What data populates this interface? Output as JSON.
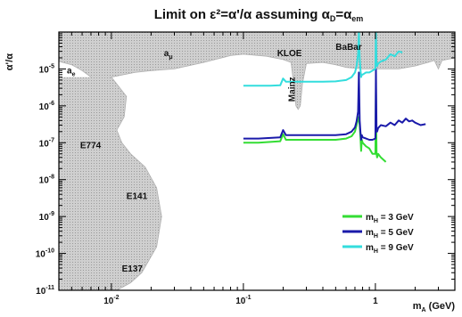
{
  "chart_data": {
    "type": "line",
    "title": "Limit on ε²=α'/α assuming α_D=α_em",
    "title_parts": {
      "main": "Limit on ε²=α'/α assuming α",
      "sub1": "D",
      "mid": "=α",
      "sub2": "em"
    },
    "xlabel": "m_A (GeV)",
    "xlabel_parts": {
      "main": "m",
      "sub": "A",
      "rest": " (GeV)"
    },
    "ylabel": "α'/α",
    "x_scale": "log",
    "y_scale": "log",
    "xlim": [
      0.004,
      4.0
    ],
    "ylim": [
      1e-11,
      0.0001
    ],
    "x_ticks": [
      {
        "value": 0.01,
        "base": "10",
        "exp": "-2"
      },
      {
        "value": 0.1,
        "base": "10",
        "exp": "-1"
      },
      {
        "value": 1,
        "base": "1",
        "exp": ""
      }
    ],
    "y_ticks": [
      {
        "value": 1e-05,
        "base": "10",
        "exp": "-5"
      },
      {
        "value": 1e-06,
        "base": "10",
        "exp": "-6"
      },
      {
        "value": 1e-07,
        "base": "10",
        "exp": "-7"
      },
      {
        "value": 1e-08,
        "base": "10",
        "exp": "-8"
      },
      {
        "value": 1e-09,
        "base": "10",
        "exp": "-9"
      },
      {
        "value": 1e-10,
        "base": "10",
        "exp": "-10"
      },
      {
        "value": 1e-11,
        "base": "10",
        "exp": "-11"
      }
    ],
    "excluded_regions": {
      "fill": "#c4c4c4",
      "color": "#b0b0b0",
      "top_boundary": [
        [
          0.004,
          1.6e-05
        ],
        [
          0.005,
          1.3e-05
        ],
        [
          0.006,
          9e-06
        ],
        [
          0.007,
          6e-06
        ],
        [
          0.0075,
          5e-06
        ],
        [
          0.008,
          5e-06
        ],
        [
          0.01,
          6e-06
        ],
        [
          0.015,
          8e-06
        ],
        [
          0.02,
          9e-06
        ],
        [
          0.03,
          1e-05
        ],
        [
          0.05,
          1.5e-05
        ],
        [
          0.08,
          2.3e-05
        ],
        [
          0.1,
          2.5e-05
        ],
        [
          0.15,
          2.2e-05
        ],
        [
          0.2,
          1.8e-05
        ],
        [
          0.23,
          1.5e-05
        ],
        [
          0.24,
          4e-06
        ],
        [
          0.25,
          1e-06
        ],
        [
          0.26,
          8e-07
        ],
        [
          0.27,
          1e-06
        ],
        [
          0.28,
          4e-06
        ],
        [
          0.3,
          1.4e-05
        ],
        [
          0.4,
          1.5e-05
        ],
        [
          0.5,
          1.3e-05
        ],
        [
          0.6,
          1.1e-05
        ],
        [
          0.8,
          1e-05
        ],
        [
          1.0,
          1e-05
        ],
        [
          1.5,
          1e-05
        ],
        [
          2.0,
          1.2e-05
        ],
        [
          2.5,
          1.5e-05
        ],
        [
          2.8,
          1.7e-05
        ],
        [
          3.0,
          1e-05
        ],
        [
          3.2,
          1.7e-05
        ],
        [
          4.0,
          2e-05
        ]
      ],
      "left_boundary": [
        [
          0.01,
          6e-06
        ],
        [
          0.013,
          1.8e-06
        ],
        [
          0.0125,
          5e-07
        ],
        [
          0.011,
          2.2e-07
        ],
        [
          0.012,
          1e-07
        ],
        [
          0.014,
          5e-08
        ],
        [
          0.018,
          2.2e-08
        ],
        [
          0.022,
          6e-09
        ],
        [
          0.024,
          1e-09
        ],
        [
          0.022,
          1.5e-10
        ],
        [
          0.017,
          3e-11
        ],
        [
          0.014,
          1.6e-11
        ],
        [
          0.011,
          1e-11
        ]
      ]
    },
    "series": [
      {
        "name": "m_H = 3 GeV",
        "label_main": "m",
        "label_sub": "H",
        "label_rest": " = 3 GeV",
        "color": "#33dd33",
        "x": [
          0.1,
          0.13,
          0.16,
          0.19,
          0.2,
          0.21,
          0.24,
          0.3,
          0.4,
          0.5,
          0.6,
          0.66,
          0.7,
          0.72,
          0.74,
          0.75,
          0.76,
          0.77,
          0.78,
          0.79,
          0.8,
          0.85,
          0.9,
          0.95,
          1.0,
          1.01,
          1.02,
          1.03,
          1.05,
          1.1,
          1.2
        ],
        "y": [
          1e-07,
          1e-07,
          1.05e-07,
          1.1e-07,
          1.7e-07,
          1.2e-07,
          1.2e-07,
          1.2e-07,
          1.2e-07,
          1.2e-07,
          1.3e-07,
          1.5e-07,
          2e-07,
          3e-07,
          5e-07,
          4e-07,
          3e-07,
          1.5e-07,
          6e-08,
          1.2e-07,
          1e-07,
          8e-08,
          7e-08,
          5e-08,
          5e-08,
          2.5e-06,
          5e-08,
          4e-08,
          5e-08,
          4e-08,
          3e-08
        ]
      },
      {
        "name": "m_H = 5 GeV",
        "label_main": "m",
        "label_sub": "H",
        "label_rest": " = 5 GeV",
        "color": "#1a1aaa",
        "x": [
          0.1,
          0.13,
          0.16,
          0.19,
          0.2,
          0.21,
          0.24,
          0.3,
          0.4,
          0.5,
          0.6,
          0.66,
          0.7,
          0.72,
          0.74,
          0.75,
          0.76,
          0.77,
          0.78,
          0.79,
          0.8,
          0.85,
          0.9,
          0.95,
          1.0,
          1.01,
          1.02,
          1.03,
          1.05,
          1.1,
          1.2,
          1.3,
          1.4,
          1.5,
          1.6,
          1.7,
          1.8,
          1.9,
          2.0,
          2.2,
          2.4
        ],
        "y": [
          1.3e-07,
          1.3e-07,
          1.35e-07,
          1.4e-07,
          2.2e-07,
          1.6e-07,
          1.6e-07,
          1.6e-07,
          1.6e-07,
          1.6e-07,
          1.7e-07,
          2e-07,
          2.6e-07,
          3.8e-07,
          7e-07,
          8e-06,
          4e-07,
          2e-07,
          1.2e-07,
          1.6e-07,
          1.4e-07,
          1.3e-07,
          1.2e-07,
          1.2e-07,
          1.3e-07,
          1e-05,
          2e-07,
          2e-07,
          2.5e-07,
          3e-07,
          2.8e-07,
          3.5e-07,
          3e-07,
          4e-07,
          3.5e-07,
          4.5e-07,
          3.8e-07,
          4e-07,
          3.5e-07,
          3e-07,
          3.2e-07
        ]
      },
      {
        "name": "m_H = 9 GeV",
        "label_main": "m",
        "label_sub": "H",
        "label_rest": " = 9 GeV",
        "color": "#33dddd",
        "x": [
          0.1,
          0.13,
          0.16,
          0.19,
          0.2,
          0.21,
          0.24,
          0.3,
          0.4,
          0.5,
          0.6,
          0.66,
          0.7,
          0.72,
          0.74,
          0.75,
          0.76,
          0.77,
          0.78,
          0.79,
          0.8,
          0.85,
          0.9,
          0.95,
          1.0,
          1.01,
          1.02,
          1.03,
          1.05,
          1.1,
          1.2,
          1.3,
          1.4,
          1.5,
          1.6
        ],
        "y": [
          3.5e-06,
          3.5e-06,
          3.5e-06,
          3.6e-06,
          5.5e-06,
          4.5e-06,
          4.5e-06,
          4.5e-06,
          4.5e-06,
          4.6e-06,
          5e-06,
          6e-06,
          8e-06,
          1.2e-05,
          2.5e-05,
          0.0001,
          2e-05,
          1e-05,
          6e-06,
          7e-06,
          7e-06,
          8e-06,
          8e-06,
          9e-06,
          1e-05,
          0.0001,
          1.2e-05,
          1.2e-05,
          1.4e-05,
          1.6e-05,
          1.8e-05,
          2.5e-05,
          2.2e-05,
          3e-05,
          2.8e-05
        ]
      }
    ],
    "annotations": [
      {
        "text": "a_μ",
        "main": "a",
        "sub": "μ",
        "x": 0.025,
        "y": 2.2e-05
      },
      {
        "text": "a_e",
        "main": "a",
        "sub": "e",
        "x": 0.0046,
        "y": 7.5e-06
      },
      {
        "text": "KLOE",
        "main": "KLOE",
        "sub": "",
        "x": 0.18,
        "y": 2.2e-05
      },
      {
        "text": "Mainz",
        "main": "Mainz",
        "sub": "",
        "x": 0.245,
        "y": 2.8e-06,
        "vertical": true
      },
      {
        "text": "BaBar",
        "main": "BaBar",
        "sub": "",
        "x": 0.5,
        "y": 3.3e-05
      },
      {
        "text": "E774",
        "main": "E774",
        "sub": "",
        "x": 0.0058,
        "y": 7e-08
      },
      {
        "text": "E141",
        "main": "E141",
        "sub": "",
        "x": 0.013,
        "y": 3e-09
      },
      {
        "text": "E137",
        "main": "E137",
        "sub": "",
        "x": 0.012,
        "y": 3.2e-11
      }
    ],
    "legend": {
      "position": "bottom-right"
    },
    "grid": false
  }
}
